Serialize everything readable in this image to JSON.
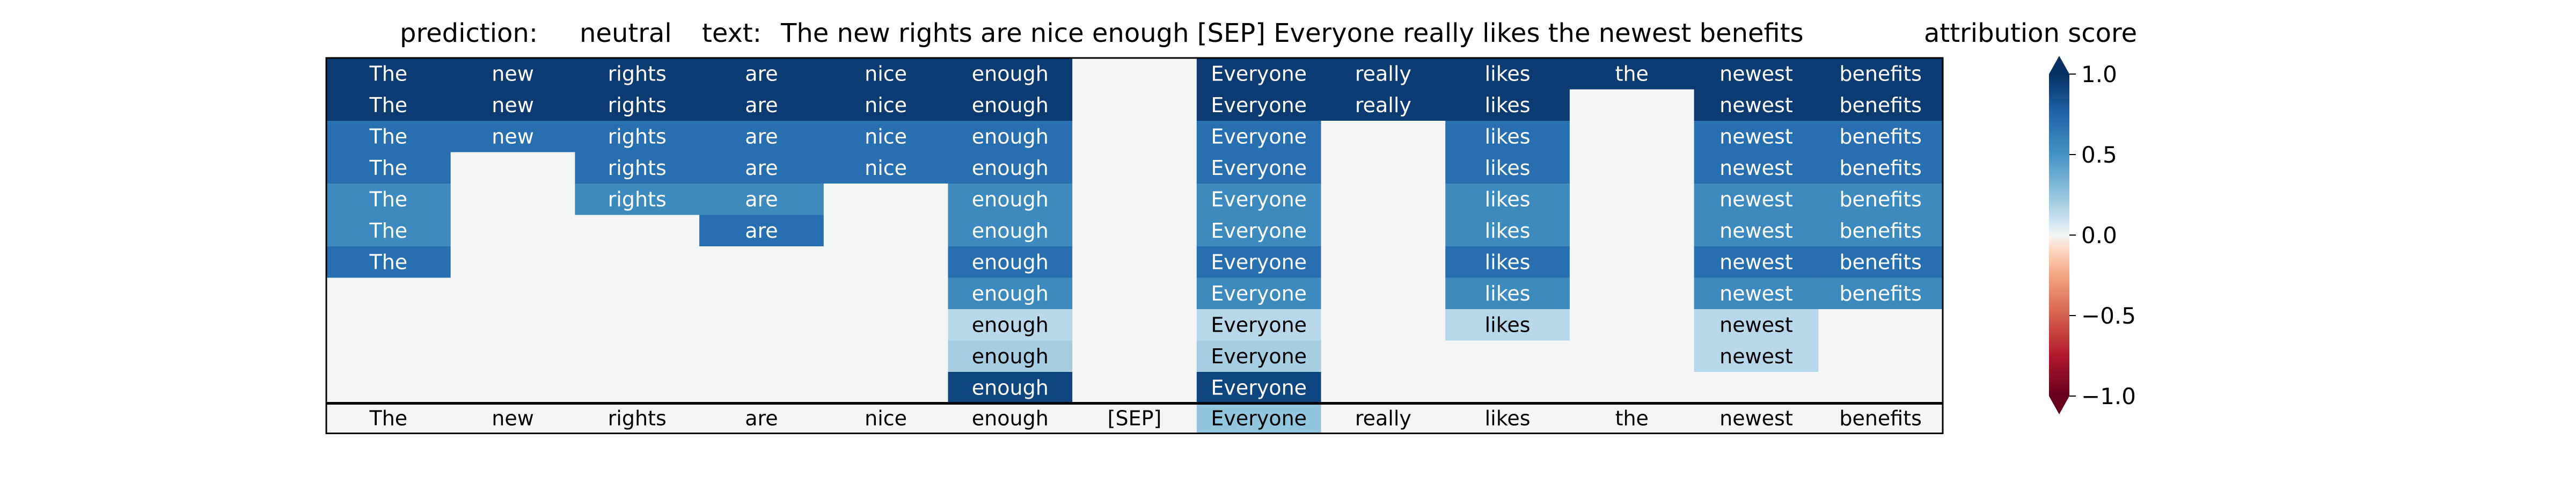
{
  "header": {
    "prediction_label": "prediction:",
    "prediction_value": "neutral",
    "text_label": "text:",
    "text_value": "The new rights are nice enough [SEP] Everyone really likes the newest benefits"
  },
  "colorbar": {
    "title": "attribution score",
    "ticks": [
      "1.0",
      "0.5",
      "0.0",
      "−0.5",
      "−1.0"
    ],
    "tick_values": [
      1.0,
      0.5,
      0.0,
      -0.5,
      -1.0
    ],
    "range": [
      -1.0,
      1.0
    ],
    "colormap": "RdBu",
    "colors": {
      "positive_max": "#08306b",
      "positive_mid": "#4393c3",
      "neutral": "#f7f7f7",
      "negative_mid": "#d6604d",
      "negative_max": "#67001f"
    }
  },
  "chart_data": {
    "type": "heatmap",
    "columns": [
      "The",
      "new",
      "rights",
      "are",
      "nice",
      "enough",
      "[SEP]",
      "Everyone",
      "really",
      "likes",
      "the",
      "newest",
      "benefits"
    ],
    "rows": [
      [
        0.95,
        0.95,
        0.95,
        0.95,
        0.95,
        0.95,
        0,
        0.95,
        0.95,
        0.95,
        0.95,
        0.95,
        0.95
      ],
      [
        0.95,
        0.95,
        0.95,
        0.95,
        0.95,
        0.95,
        0,
        0.95,
        0.95,
        0.95,
        0,
        0.95,
        0.95
      ],
      [
        0.7,
        0.7,
        0.7,
        0.7,
        0.7,
        0.7,
        0,
        0.7,
        0,
        0.7,
        0,
        0.7,
        0.7
      ],
      [
        0.7,
        0,
        0.7,
        0.7,
        0.7,
        0.7,
        0,
        0.7,
        0,
        0.7,
        0,
        0.7,
        0.7
      ],
      [
        0.55,
        0,
        0.55,
        0.55,
        0,
        0.55,
        0,
        0.55,
        0,
        0.55,
        0,
        0.55,
        0.55
      ],
      [
        0.55,
        0,
        0,
        0.7,
        0,
        0.55,
        0,
        0.55,
        0,
        0.55,
        0,
        0.55,
        0.55
      ],
      [
        0.7,
        0,
        0,
        0,
        0,
        0.7,
        0,
        0.7,
        0,
        0.7,
        0,
        0.7,
        0.7
      ],
      [
        0,
        0,
        0,
        0,
        0,
        0.55,
        0,
        0.55,
        0,
        0.55,
        0,
        0.55,
        0.55
      ],
      [
        0,
        0,
        0,
        0,
        0,
        0.15,
        0,
        0.15,
        0,
        0.15,
        0,
        0.15,
        0
      ],
      [
        0,
        0,
        0,
        0,
        0,
        0.2,
        0,
        0.2,
        0,
        0,
        0,
        0.15,
        0
      ],
      [
        0,
        0,
        0,
        0,
        0,
        0.9,
        0,
        0.9,
        0,
        0,
        0,
        0,
        0
      ]
    ],
    "summary_row": [
      0,
      0,
      0,
      0,
      0,
      0,
      0,
      0.25,
      0,
      0,
      0,
      0,
      0
    ],
    "vmin": -1.0,
    "vmax": 1.0
  }
}
